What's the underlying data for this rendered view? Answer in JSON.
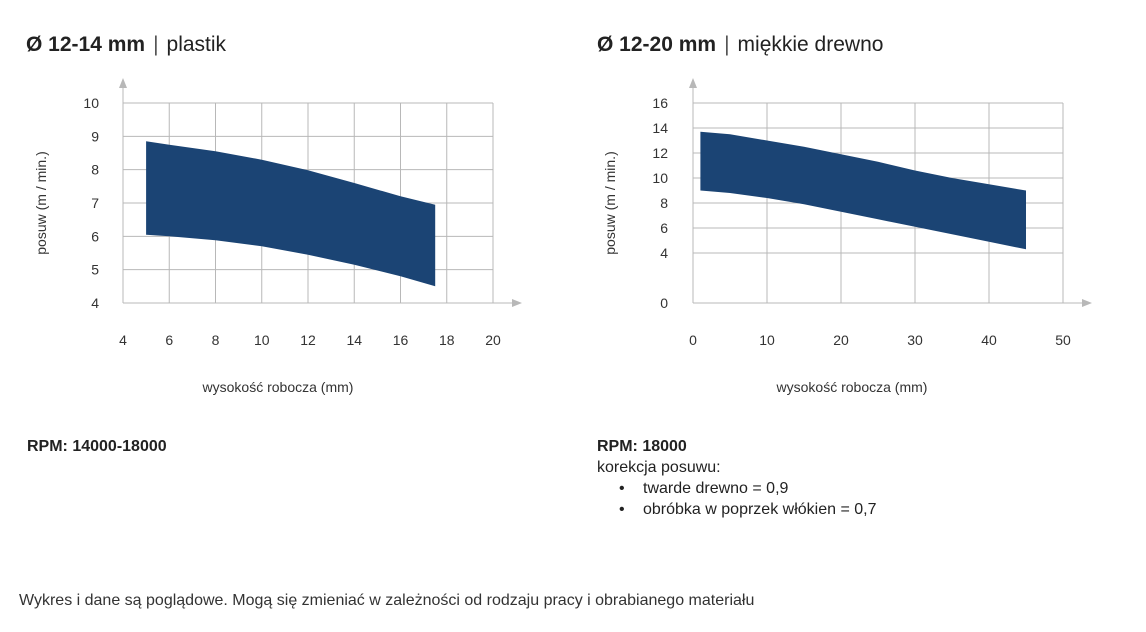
{
  "chart_data": [
    {
      "type": "area",
      "title_bold": "Ø 12-14 mm",
      "title_sep": "|",
      "title_material": "plastik",
      "xlabel": "wysokość robocza (mm)",
      "ylabel": "posuw (m / min.)",
      "xlim": [
        4,
        20
      ],
      "ylim": [
        4,
        10
      ],
      "xticks": [
        4,
        6,
        8,
        10,
        12,
        14,
        16,
        18,
        20
      ],
      "yticks": [
        4,
        5,
        6,
        7,
        8,
        9,
        10
      ],
      "upper": [
        [
          5,
          8.85
        ],
        [
          6,
          8.75
        ],
        [
          8,
          8.55
        ],
        [
          10,
          8.3
        ],
        [
          12,
          7.98
        ],
        [
          14,
          7.6
        ],
        [
          16,
          7.2
        ],
        [
          17.5,
          6.95
        ]
      ],
      "lower": [
        [
          5,
          6.05
        ],
        [
          6,
          6.0
        ],
        [
          8,
          5.88
        ],
        [
          10,
          5.7
        ],
        [
          12,
          5.45
        ],
        [
          14,
          5.15
        ],
        [
          16,
          4.8
        ],
        [
          17.5,
          4.5
        ]
      ]
    },
    {
      "type": "area",
      "title_bold": "Ø 12-20 mm",
      "title_sep": "|",
      "title_material": "miękkie drewno",
      "xlabel": "wysokość robocza (mm)",
      "ylabel": "posuw (m / min.)",
      "xlim": [
        0,
        50
      ],
      "ylim": [
        0,
        16
      ],
      "xticks": [
        0,
        10,
        20,
        30,
        40,
        50
      ],
      "yticks": [
        0,
        4,
        6,
        8,
        10,
        12,
        14,
        16
      ],
      "upper": [
        [
          1,
          13.7
        ],
        [
          5,
          13.5
        ],
        [
          10,
          13.0
        ],
        [
          15,
          12.5
        ],
        [
          20,
          11.9
        ],
        [
          25,
          11.3
        ],
        [
          30,
          10.6
        ],
        [
          35,
          10.0
        ],
        [
          40,
          9.5
        ],
        [
          45,
          9.0
        ]
      ],
      "lower": [
        [
          1,
          9.0
        ],
        [
          5,
          8.8
        ],
        [
          10,
          8.4
        ],
        [
          15,
          7.9
        ],
        [
          20,
          7.3
        ],
        [
          25,
          6.7
        ],
        [
          30,
          6.1
        ],
        [
          35,
          5.5
        ],
        [
          40,
          4.9
        ],
        [
          45,
          4.3
        ]
      ]
    }
  ],
  "info_left": {
    "rpm": "RPM: 14000-18000"
  },
  "info_right": {
    "rpm": "RPM: 18000",
    "correction_label": "korekcja posuwu:",
    "items": [
      "twarde drewno = 0,9",
      "obróbka w poprzek włókien = 0,7"
    ]
  },
  "footer": "Wykres i dane są poglądowe. Mogą się zmieniać w zależności od rodzaju pracy i obrabianego materiału"
}
